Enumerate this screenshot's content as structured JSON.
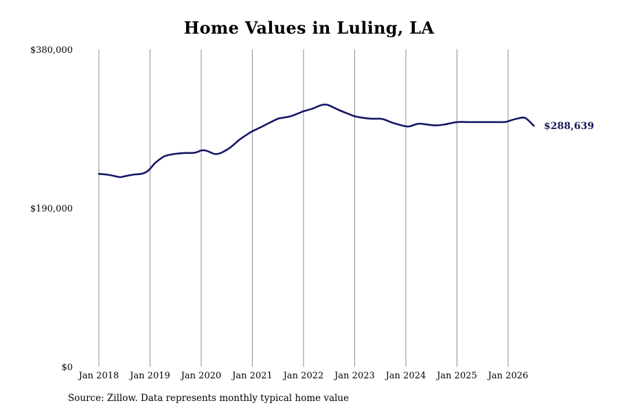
{
  "chart_data": {
    "type": "line",
    "title": "Home Values in Luling, LA",
    "xlabel": "",
    "ylabel": "",
    "ylim": [
      0,
      380000
    ],
    "y_ticks": [
      0,
      190000,
      380000
    ],
    "y_tick_labels": [
      "$0",
      "$190,000",
      "$380,000"
    ],
    "x_ticks": [
      2018,
      2019,
      2020,
      2021,
      2022,
      2023,
      2024,
      2025,
      2026
    ],
    "x_tick_labels": [
      "Jan 2018",
      "Jan 2019",
      "Jan 2020",
      "Jan 2021",
      "Jan 2022",
      "Jan 2023",
      "Jan 2024",
      "Jan 2025",
      "Jan 2026"
    ],
    "grid": "vertical",
    "line_color": "#141466",
    "end_value_label": "$288,639",
    "series": [
      {
        "x": [
          2018.0,
          2018.17,
          2018.33,
          2018.42,
          2018.5,
          2018.67,
          2018.83,
          2018.92,
          2019.0,
          2019.1,
          2019.25,
          2019.33,
          2019.5,
          2019.67,
          2019.83,
          2019.92,
          2020.0,
          2020.08,
          2020.17,
          2020.25,
          2020.33,
          2020.42,
          2020.58,
          2020.75,
          2020.92,
          2021.0,
          2021.17,
          2021.33,
          2021.5,
          2021.58,
          2021.75,
          2021.92,
          2022.0,
          2022.17,
          2022.33,
          2022.42,
          2022.5,
          2022.67,
          2022.83,
          2023.0,
          2023.17,
          2023.33,
          2023.5,
          2023.58,
          2023.75,
          2023.92,
          2024.0,
          2024.08,
          2024.25,
          2024.42,
          2024.58,
          2024.75,
          2025.0,
          2025.25,
          2025.5,
          2025.67,
          2025.92,
          2026.0,
          2026.17,
          2026.33,
          2026.5
        ],
        "y": [
          231000,
          230000,
          228000,
          227000,
          228000,
          230000,
          231000,
          233000,
          237000,
          244000,
          251000,
          253000,
          255000,
          256000,
          256000,
          257000,
          259000,
          259000,
          257000,
          255000,
          255000,
          257000,
          263000,
          272000,
          279000,
          282000,
          287000,
          292000,
          297000,
          298000,
          300000,
          304000,
          306000,
          309000,
          313000,
          314000,
          313000,
          308000,
          304000,
          300000,
          298000,
          297000,
          297000,
          296000,
          292000,
          289000,
          288000,
          288000,
          291000,
          290000,
          289000,
          290000,
          293000,
          293000,
          293000,
          293000,
          293000,
          294000,
          297000,
          298000,
          288639
        ]
      }
    ],
    "source_note": "Source: Zillow. Data represents monthly typical home value"
  }
}
